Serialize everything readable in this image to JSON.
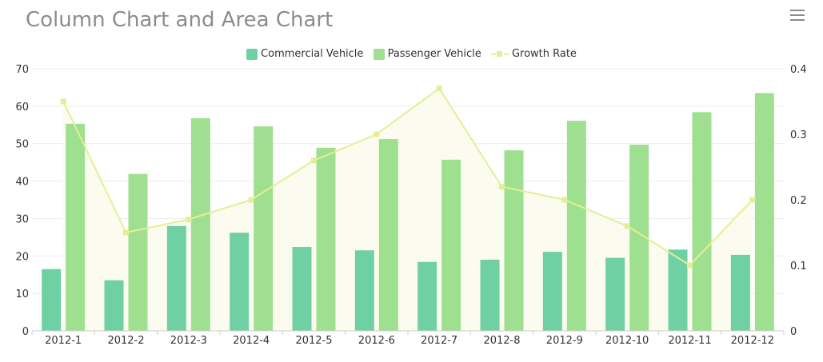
{
  "header": {
    "title": "Column Chart and Area Chart",
    "menu_icon": "hamburger-menu-icon"
  },
  "colors": {
    "commercial": "#6fd1a3",
    "passenger": "#9ee08f",
    "growth_line": "#e3ef96",
    "growth_area": "#fbfcef"
  },
  "chart_data": {
    "type": "bar",
    "title": "Column Chart and Area Chart",
    "categories": [
      "2012-1",
      "2012-2",
      "2012-3",
      "2012-4",
      "2012-5",
      "2012-6",
      "2012-7",
      "2012-8",
      "2012-9",
      "2012-10",
      "2012-11",
      "2012-12"
    ],
    "series": [
      {
        "name": "Commercial Vehicle",
        "kind": "bar",
        "axis": "left",
        "values": [
          16.5,
          13.5,
          28.0,
          26.2,
          22.4,
          21.5,
          18.4,
          19.0,
          21.1,
          19.5,
          21.7,
          20.3
        ]
      },
      {
        "name": "Passenger Vehicle",
        "kind": "bar",
        "axis": "left",
        "values": [
          55.3,
          41.9,
          56.8,
          54.6,
          48.9,
          51.2,
          45.7,
          48.2,
          56.1,
          49.7,
          58.4,
          63.5
        ]
      },
      {
        "name": "Growth Rate",
        "kind": "area-line",
        "axis": "right",
        "values": [
          0.35,
          0.15,
          0.17,
          0.2,
          0.26,
          0.3,
          0.37,
          0.22,
          0.2,
          0.16,
          0.1,
          0.2
        ]
      }
    ],
    "y_left": {
      "min": 0,
      "max": 70,
      "ticks": [
        "0",
        "10",
        "20",
        "30",
        "40",
        "50",
        "60",
        "70"
      ]
    },
    "y_right": {
      "min": 0,
      "max": 0.4,
      "ticks": [
        "0",
        "0.1",
        "0.2",
        "0.3",
        "0.4"
      ]
    },
    "legend": [
      "Commercial Vehicle",
      "Passenger Vehicle",
      "Growth Rate"
    ],
    "legend_position": "top-center",
    "grid": true
  }
}
